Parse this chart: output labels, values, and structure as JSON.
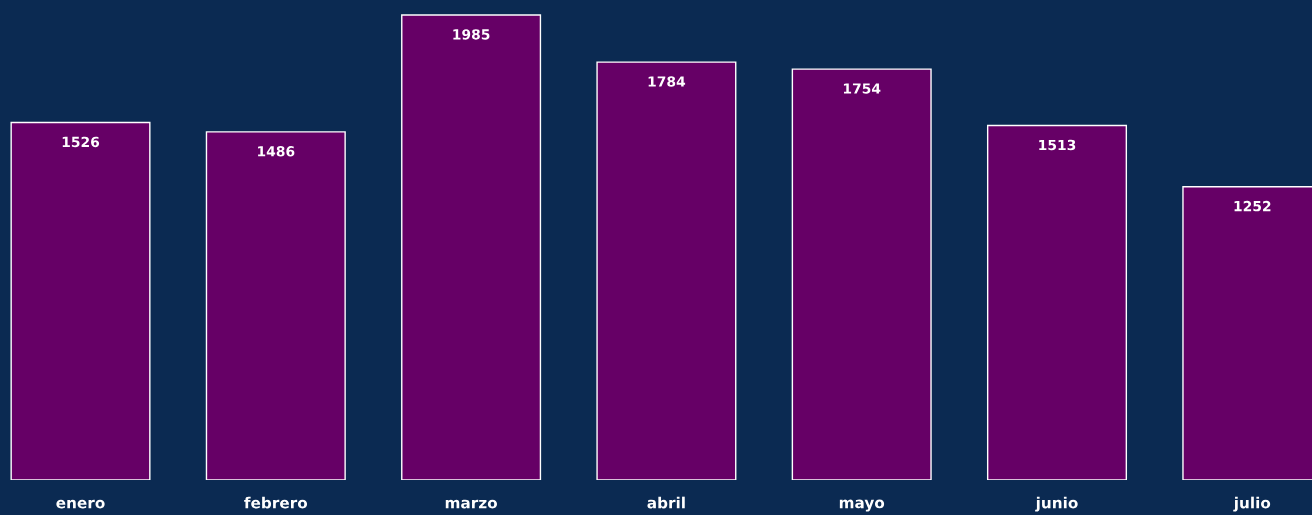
{
  "chart_data": {
    "type": "bar",
    "categories": [
      "enero",
      "febrero",
      "marzo",
      "abril",
      "mayo",
      "junio",
      "julio"
    ],
    "values": [
      1526,
      1486,
      1985,
      1784,
      1754,
      1513,
      1252
    ],
    "color": "#660066",
    "data_labels": true,
    "grid": false,
    "legend": false
  }
}
